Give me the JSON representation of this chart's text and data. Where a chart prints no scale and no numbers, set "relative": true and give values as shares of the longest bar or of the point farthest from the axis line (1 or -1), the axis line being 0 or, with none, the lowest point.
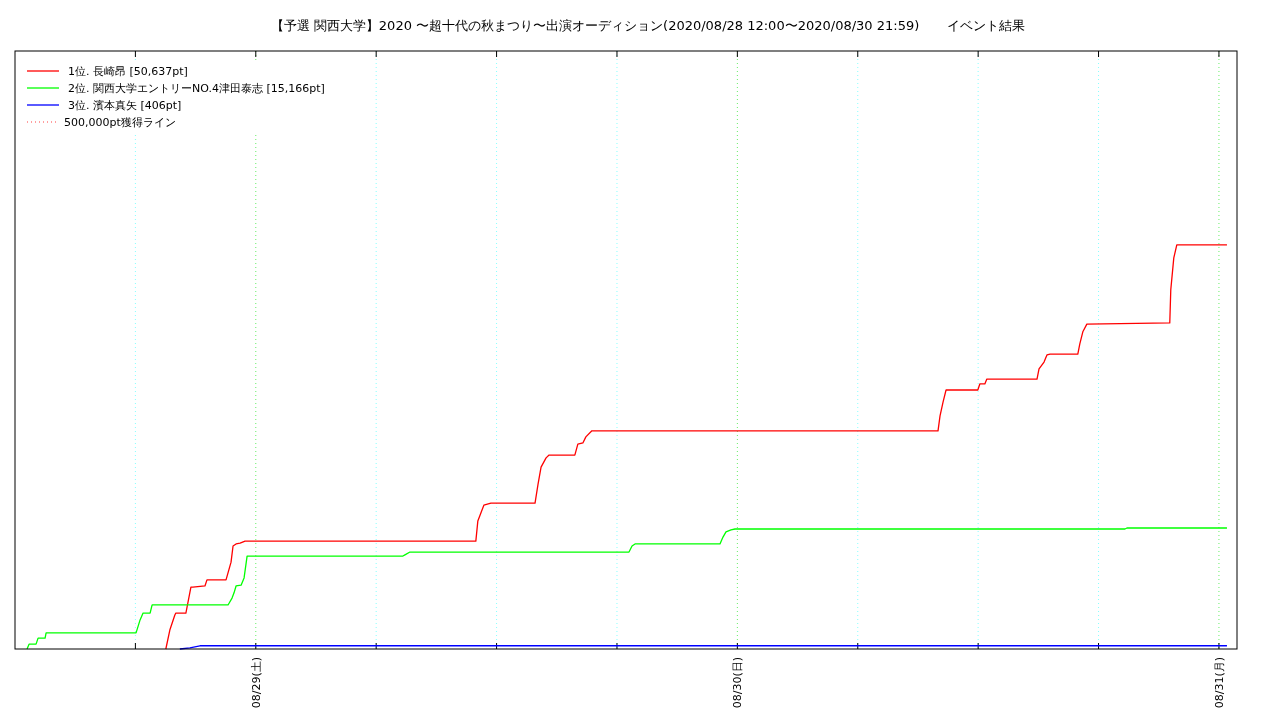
{
  "chart_data": {
    "type": "line",
    "title": "【予選 関西大学】2020 〜超十代の秋まつり〜出演オーディション(2020/08/28 12:00〜2020/08/30 21:59)",
    "subtitle": "イベント結果",
    "relative": true,
    "xlim": [
      "2020-08-28T12:00",
      "2020-08-31T00:54"
    ],
    "xticks": [
      {
        "value": "2020-08-28T18:00",
        "label": null
      },
      {
        "value": "2020-08-29T00:00",
        "label": "08/29(土)"
      },
      {
        "value": "2020-08-29T06:00",
        "label": null
      },
      {
        "value": "2020-08-29T12:00",
        "label": null
      },
      {
        "value": "2020-08-29T18:00",
        "label": null
      },
      {
        "value": "2020-08-30T00:00",
        "label": "08/30(日)"
      },
      {
        "value": "2020-08-30T06:00",
        "label": null
      },
      {
        "value": "2020-08-30T12:00",
        "label": null
      },
      {
        "value": "2020-08-30T18:00",
        "label": null
      },
      {
        "value": "2020-08-31T00:00",
        "label": "08/31(月)"
      }
    ],
    "grid": "x",
    "legend": "top left",
    "series": [
      {
        "name": "1位. 長崎昂 [50,637pt]",
        "color": "#ff0000",
        "x": [
          "2020-08-28T19:31",
          "2020-08-28T19:43",
          "2020-08-28T19:58",
          "2020-08-28T20:01",
          "2020-08-28T20:31",
          "2020-08-28T20:46",
          "2020-08-28T20:52",
          "2020-08-28T21:28",
          "2020-08-28T21:34",
          "2020-08-28T22:31",
          "2020-08-28T22:46",
          "2020-08-28T22:52",
          "2020-08-28T23:01",
          "2020-08-28T23:13",
          "2020-08-28T23:28",
          "2020-08-29T10:58",
          "2020-08-29T11:04",
          "2020-08-29T11:22",
          "2020-08-29T11:43",
          "2020-08-29T13:55",
          "2020-08-29T14:04",
          "2020-08-29T14:13",
          "2020-08-29T14:28",
          "2020-08-29T14:37",
          "2020-08-29T15:54",
          "2020-08-29T16:03",
          "2020-08-29T16:18",
          "2020-08-29T16:27",
          "2020-08-29T16:45",
          "2020-08-30T10:00",
          "2020-08-30T10:06",
          "2020-08-30T10:15",
          "2020-08-30T10:24",
          "2020-08-30T11:59",
          "2020-08-30T12:05",
          "2020-08-30T12:20",
          "2020-08-30T12:26",
          "2020-08-30T14:56",
          "2020-08-30T15:02",
          "2020-08-30T15:17",
          "2020-08-30T15:26",
          "2020-08-30T15:35",
          "2020-08-30T16:58",
          "2020-08-30T17:04",
          "2020-08-30T17:13",
          "2020-08-30T17:25",
          "2020-08-30T21:33",
          "2020-08-30T21:36",
          "2020-08-30T21:45",
          "2020-08-30T21:54",
          "2020-08-31T00:24"
        ],
        "values": [
          0,
          0.047,
          0.084,
          0.089,
          0.089,
          0.153,
          0.153,
          0.156,
          0.171,
          0.171,
          0.215,
          0.255,
          0.26,
          0.262,
          0.267,
          0.267,
          0.317,
          0.356,
          0.361,
          0.361,
          0.408,
          0.45,
          0.473,
          0.48,
          0.48,
          0.507,
          0.51,
          0.525,
          0.54,
          0.54,
          0.577,
          0.611,
          0.641,
          0.641,
          0.656,
          0.656,
          0.668,
          0.668,
          0.693,
          0.71,
          0.728,
          0.73,
          0.73,
          0.755,
          0.785,
          0.804,
          0.807,
          0.889,
          0.968,
          1,
          1
        ]
      },
      {
        "name": "2位. 関西大学エントリーNO.4津田泰志 [15,166pt]",
        "color": "#00ff00",
        "x": [
          "2020-08-28T12:36",
          "2020-08-28T12:42",
          "2020-08-28T13:03",
          "2020-08-28T13:09",
          "2020-08-28T13:30",
          "2020-08-28T13:33",
          "2020-08-28T18:02",
          "2020-08-28T18:14",
          "2020-08-28T18:23",
          "2020-08-28T18:44",
          "2020-08-28T18:50",
          "2020-08-28T22:37",
          "2020-08-28T22:49",
          "2020-08-28T22:55",
          "2020-08-28T23:01",
          "2020-08-28T23:16",
          "2020-08-28T23:25",
          "2020-08-28T23:34",
          "2020-08-29T07:20",
          "2020-08-29T07:26",
          "2020-08-29T07:41",
          "2020-08-29T18:36",
          "2020-08-29T18:45",
          "2020-08-29T18:54",
          "2020-08-29T23:08",
          "2020-08-29T23:17",
          "2020-08-29T23:26",
          "2020-08-29T23:41",
          "2020-08-29T23:53",
          "2020-08-30T19:19",
          "2020-08-30T19:25",
          "2020-08-31T00:24"
        ],
        "values": [
          0,
          0.012,
          0.012,
          0.027,
          0.027,
          0.04,
          0.04,
          0.072,
          0.089,
          0.089,
          0.109,
          0.109,
          0.126,
          0.139,
          0.156,
          0.158,
          0.176,
          0.23,
          0.23,
          0.233,
          0.24,
          0.24,
          0.255,
          0.26,
          0.26,
          0.277,
          0.29,
          0.295,
          0.297,
          0.297,
          0.2995,
          0.2995
        ]
      },
      {
        "name": "3位. 濱本真矢 [406pt]",
        "color": "#0000ff",
        "x": [
          "2020-08-28T20:13",
          "2020-08-28T20:43",
          "2020-08-28T21:13",
          "2020-08-31T00:24"
        ],
        "values": [
          0,
          0.003,
          0.008,
          0.008
        ]
      },
      {
        "name": "500,000pt獲得ライン",
        "color": "#ff8080",
        "line_style": "dotted"
      }
    ]
  }
}
